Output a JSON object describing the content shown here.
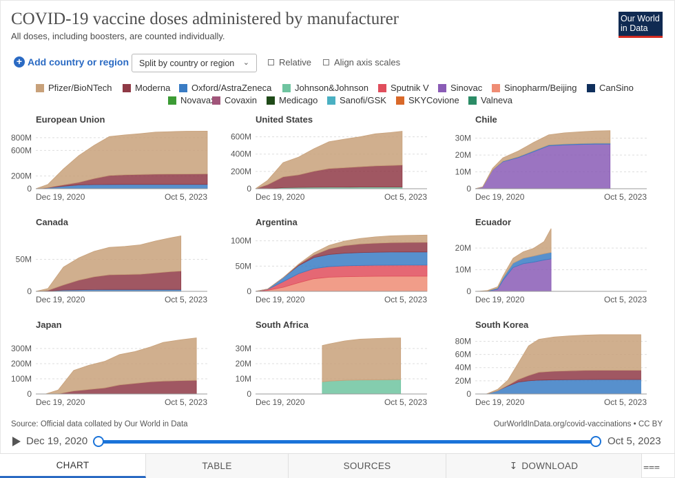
{
  "title": "COVID-19 vaccine doses administered by manufacturer",
  "subtitle": "All doses, including boosters, are counted individually.",
  "logo": {
    "line1": "Our World",
    "line2": "in Data"
  },
  "controls": {
    "add_label": "Add country or region",
    "split_label": "Split by country or region",
    "relative_label": "Relative",
    "align_label": "Align axis scales"
  },
  "colors": {
    "Pfizer/BioNTech": "#c8a17a",
    "Moderna": "#8f3a46",
    "Oxford/AstraZeneca": "#3a7cc4",
    "Johnson&Johnson": "#6fc4a0",
    "Sputnik V": "#e04e5c",
    "Sinovac": "#8a5cb6",
    "Sinopharm/Beijing": "#ef8c74",
    "CanSino": "#0f2f5c",
    "Novavax": "#3c9b35",
    "Covaxin": "#a1557a",
    "Medicago": "#1f4a18",
    "Sanofi/GSK": "#4ab0c2",
    "SKYCovione": "#d9692a",
    "Valneva": "#2b8c66"
  },
  "legend": [
    [
      "Pfizer/BioNTech",
      "Moderna",
      "Oxford/AstraZeneca",
      "Johnson&Johnson",
      "Sputnik V",
      "Sinovac",
      "Sinopharm/Beijing",
      "CanSino"
    ],
    [
      "Novavax",
      "Covaxin",
      "Medicago",
      "Sanofi/GSK",
      "SKYCovione",
      "Valneva"
    ]
  ],
  "footer": {
    "source": "Source: Official data collated by Our World in Data",
    "license": "OurWorldInData.org/covid-vaccinations • CC BY"
  },
  "timeline": {
    "start": "Dec 19, 2020",
    "end": "Oct 5, 2023"
  },
  "tabs": {
    "chart": "CHART",
    "table": "TABLE",
    "sources": "SOURCES",
    "download": "DOWNLOAD"
  },
  "chart_data": [
    {
      "type": "area",
      "title": "European Union",
      "stacked": true,
      "x": [
        "2020-12-19",
        "2021-03-01",
        "2021-06-01",
        "2021-09-01",
        "2021-12-01",
        "2022-03-01",
        "2022-06-01",
        "2022-09-01",
        "2022-12-01",
        "2023-03-01",
        "2023-06-01",
        "2023-10-05"
      ],
      "series": [
        {
          "name": "Oxford/AstraZeneca",
          "values": [
            0,
            15,
            40,
            60,
            65,
            67,
            68,
            68,
            68,
            68,
            68,
            68
          ]
        },
        {
          "name": "Moderna",
          "values": [
            0,
            3,
            20,
            40,
            95,
            140,
            150,
            155,
            160,
            162,
            163,
            165
          ]
        },
        {
          "name": "Pfizer/BioNTech",
          "values": [
            0,
            50,
            250,
            420,
            520,
            610,
            625,
            640,
            660,
            665,
            670,
            670
          ]
        }
      ],
      "xlabels": [
        "Dec 19, 2020",
        "Oct 5, 2023"
      ],
      "yticks": [
        0,
        200,
        600,
        800
      ],
      "yticklabels": [
        "0",
        "200M",
        "600M",
        "800M"
      ],
      "ylim": [
        0,
        950
      ]
    },
    {
      "type": "area",
      "title": "United States",
      "stacked": true,
      "x": [
        "2020-12-19",
        "2021-03-01",
        "2021-06-01",
        "2021-09-01",
        "2021-12-01",
        "2022-03-01",
        "2022-06-01",
        "2022-09-01",
        "2022-12-01",
        "2023-03-01",
        "2023-05-10"
      ],
      "series": [
        {
          "name": "Johnson&Johnson",
          "values": [
            0,
            2,
            12,
            15,
            17,
            18,
            18,
            19,
            19,
            19,
            19
          ]
        },
        {
          "name": "Moderna",
          "values": [
            0,
            45,
            125,
            145,
            185,
            215,
            225,
            235,
            245,
            250,
            255
          ]
        },
        {
          "name": "Pfizer/BioNTech",
          "values": [
            0,
            50,
            165,
            205,
            260,
            310,
            330,
            345,
            370,
            380,
            390
          ]
        }
      ],
      "xlabels": [
        "Dec 19, 2020",
        "Oct 5, 2023"
      ],
      "yticks": [
        0,
        200,
        400,
        600
      ],
      "yticklabels": [
        "0",
        "200M",
        "400M",
        "600M"
      ],
      "ylim": [
        0,
        700
      ]
    },
    {
      "type": "area",
      "title": "Chile",
      "stacked": true,
      "x": [
        "2020-12-19",
        "2021-02-01",
        "2021-04-01",
        "2021-06-01",
        "2021-09-01",
        "2021-12-01",
        "2022-03-01",
        "2022-06-01",
        "2022-09-01",
        "2022-12-01",
        "2023-03-01"
      ],
      "series": [
        {
          "name": "Sinovac",
          "values": [
            0,
            1,
            11,
            16,
            18.5,
            22,
            25.5,
            26,
            26.3,
            26.5,
            26.5
          ]
        },
        {
          "name": "Oxford/AstraZeneca",
          "values": [
            0,
            0,
            0.1,
            0.3,
            0.4,
            0.5,
            0.5,
            0.5,
            0.5,
            0.5,
            0.5
          ]
        },
        {
          "name": "Pfizer/BioNTech",
          "values": [
            0,
            0.1,
            1,
            2,
            3.5,
            5,
            6,
            6.7,
            7,
            7.3,
            7.5
          ]
        }
      ],
      "xlabels": [
        "Dec 19, 2020",
        "Oct 5, 2023"
      ],
      "yticks": [
        0,
        10,
        20,
        30
      ],
      "yticklabels": [
        "0",
        "10M",
        "20M",
        "30M"
      ],
      "ylim": [
        0,
        36
      ]
    },
    {
      "type": "area",
      "title": "Canada",
      "stacked": true,
      "x": [
        "2020-12-19",
        "2021-03-01",
        "2021-06-01",
        "2021-09-01",
        "2021-12-01",
        "2022-03-01",
        "2022-06-01",
        "2022-09-01",
        "2022-12-01",
        "2023-03-01",
        "2023-05-01"
      ],
      "series": [
        {
          "name": "Oxford/AstraZeneca",
          "values": [
            0,
            0.5,
            2,
            2.5,
            2.8,
            2.9,
            2.9,
            2.9,
            2.9,
            2.9,
            2.9
          ]
        },
        {
          "name": "Moderna",
          "values": [
            0,
            1,
            8,
            15,
            20,
            23,
            23.5,
            24,
            26,
            28,
            29
          ]
        },
        {
          "name": "Pfizer/BioNTech",
          "values": [
            0,
            3,
            28,
            35,
            40,
            43,
            44,
            46,
            50,
            53,
            55
          ]
        }
      ],
      "xlabels": [
        "Dec 19, 2020",
        "Oct 5, 2023"
      ],
      "yticks": [
        0,
        50
      ],
      "yticklabels": [
        "0",
        "50M"
      ],
      "ylim": [
        0,
        95
      ]
    },
    {
      "type": "area",
      "title": "Argentina",
      "stacked": true,
      "x": [
        "2020-12-19",
        "2021-03-01",
        "2021-06-01",
        "2021-09-01",
        "2021-12-01",
        "2022-03-01",
        "2022-06-01",
        "2022-09-01",
        "2022-12-01",
        "2023-03-01",
        "2023-06-01",
        "2023-10-05"
      ],
      "series": [
        {
          "name": "Sinopharm/Beijing",
          "values": [
            0,
            2,
            8,
            17,
            25,
            28,
            29,
            29.5,
            29.8,
            30,
            30,
            30
          ]
        },
        {
          "name": "Sputnik V",
          "values": [
            0,
            2,
            11,
            18,
            20,
            21,
            21.5,
            21.7,
            21.8,
            21.9,
            22,
            22
          ]
        },
        {
          "name": "Oxford/AstraZeneca",
          "values": [
            0,
            0.5,
            8,
            16,
            22,
            24,
            25,
            25.5,
            25.8,
            26,
            26,
            26
          ]
        },
        {
          "name": "Moderna",
          "values": [
            0,
            0,
            0,
            2,
            5,
            11,
            15,
            17,
            18,
            18.5,
            18.8,
            19
          ]
        },
        {
          "name": "Pfizer/BioNTech",
          "values": [
            0,
            0,
            0,
            1,
            4,
            7,
            9,
            11,
            12.5,
            13.5,
            14,
            14.5
          ]
        }
      ],
      "xlabels": [
        "Dec 19, 2020",
        "Oct 5, 2023"
      ],
      "yticks": [
        0,
        50,
        100
      ],
      "yticklabels": [
        "0",
        "50M",
        "100M"
      ],
      "ylim": [
        0,
        120
      ]
    },
    {
      "type": "area",
      "title": "Ecuador",
      "stacked": true,
      "x": [
        "2020-12-19",
        "2021-01-15",
        "2021-03-01",
        "2021-05-01",
        "2021-06-01",
        "2021-07-01",
        "2021-08-01",
        "2021-10-01",
        "2021-12-01",
        "2022-02-01",
        "2022-03-15"
      ],
      "series": [
        {
          "name": "Sinovac",
          "values": [
            0,
            0,
            0.1,
            1,
            5,
            8,
            11,
            12.8,
            13.5,
            14.5,
            15
          ]
        },
        {
          "name": "Oxford/AstraZeneca",
          "values": [
            0,
            0,
            0.1,
            0.5,
            1,
            1.5,
            2,
            2.5,
            2.8,
            2.9,
            3
          ]
        },
        {
          "name": "Pfizer/BioNTech",
          "values": [
            0,
            0.1,
            0.2,
            0.6,
            1,
            1.6,
            2.3,
            3,
            3.6,
            5.6,
            11
          ]
        }
      ],
      "xlabels": [
        "Dec 19, 2020",
        "Oct 5, 2023"
      ],
      "yticks": [
        0,
        10,
        20
      ],
      "yticklabels": [
        "0",
        "10M",
        "20M"
      ],
      "ylim": [
        0,
        28
      ]
    },
    {
      "type": "area",
      "title": "Japan",
      "stacked": true,
      "x": [
        "2020-12-19",
        "2021-02-15",
        "2021-05-01",
        "2021-08-01",
        "2021-11-01",
        "2022-02-01",
        "2022-05-01",
        "2022-08-01",
        "2022-11-01",
        "2023-01-15",
        "2023-05-01",
        "2023-08-01"
      ],
      "series": [
        {
          "name": "Moderna",
          "values": [
            0,
            0,
            1,
            20,
            30,
            40,
            60,
            70,
            80,
            85,
            88,
            90
          ]
        },
        {
          "name": "Pfizer/BioNTech",
          "values": [
            0,
            0.1,
            25,
            135,
            160,
            175,
            200,
            210,
            230,
            255,
            270,
            280
          ]
        }
      ],
      "xlabels": [
        "Dec 19, 2020",
        "Oct 5, 2023"
      ],
      "yticks": [
        0,
        100,
        200,
        300
      ],
      "yticklabels": [
        "0",
        "100M",
        "200M",
        "300M"
      ],
      "ylim": [
        0,
        400
      ]
    },
    {
      "type": "area",
      "title": "South Africa",
      "stacked": true,
      "x": [
        "2022-01-20",
        "2022-03-01",
        "2022-06-01",
        "2022-09-01",
        "2022-12-01",
        "2023-03-01",
        "2023-05-01"
      ],
      "series": [
        {
          "name": "Johnson&Johnson",
          "values": [
            8,
            8.5,
            9,
            9.2,
            9.3,
            9.4,
            9.5
          ]
        },
        {
          "name": "Pfizer/BioNTech",
          "values": [
            24,
            24.5,
            26,
            27,
            27.3,
            27.5,
            27.5
          ]
        }
      ],
      "xlabels": [
        "Dec 19, 2020",
        "Oct 5, 2023"
      ],
      "yticks": [
        0,
        10,
        20,
        30
      ],
      "yticklabels": [
        "0",
        "10M",
        "20M",
        "30M"
      ],
      "ylim": [
        0,
        40
      ]
    },
    {
      "type": "area",
      "title": "South Korea",
      "stacked": true,
      "x": [
        "2020-12-19",
        "2021-02-25",
        "2021-05-01",
        "2021-07-01",
        "2021-09-01",
        "2021-11-01",
        "2022-01-01",
        "2022-04-01",
        "2022-07-01",
        "2022-10-01",
        "2023-01-01",
        "2023-05-01",
        "2023-08-31"
      ],
      "series": [
        {
          "name": "Oxford/AstraZeneca",
          "values": [
            0,
            0.1,
            5,
            12,
            18,
            20,
            21,
            21.5,
            21.7,
            21.8,
            22,
            22,
            22
          ]
        },
        {
          "name": "Moderna",
          "values": [
            0,
            0,
            0,
            1,
            4,
            8,
            12,
            13,
            13.5,
            14,
            14,
            14,
            14
          ]
        },
        {
          "name": "Pfizer/BioNTech",
          "values": [
            0,
            0,
            2,
            8,
            25,
            45,
            50,
            52,
            53,
            53.5,
            54,
            54,
            54
          ]
        }
      ],
      "xlabels": [
        "Dec 19, 2020",
        "Oct 5, 2023"
      ],
      "yticks": [
        0,
        20,
        40,
        60,
        80
      ],
      "yticklabels": [
        "0",
        "20M",
        "40M",
        "60M",
        "80M"
      ],
      "ylim": [
        0,
        92
      ]
    }
  ]
}
